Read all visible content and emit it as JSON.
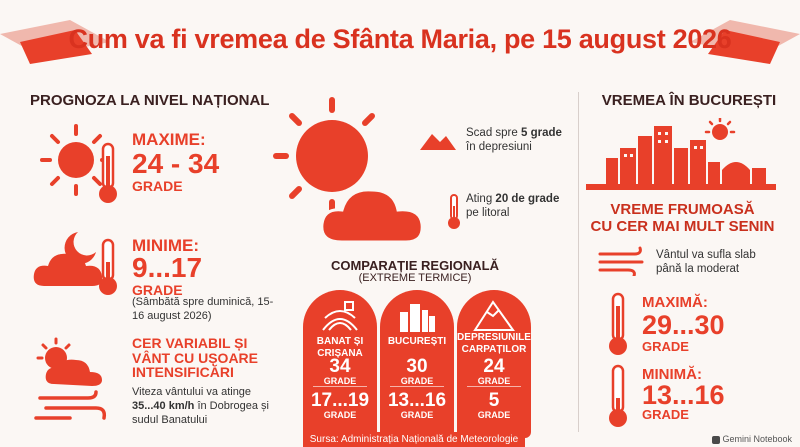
{
  "title": "Cum va fi vremea de Sfânta Maria, pe 15 august 2026",
  "national": {
    "heading": "PROGNOZA LA NIVEL NAȚIONAL",
    "max_label": "MAXIME:",
    "max_value": "24 - 34",
    "max_unit": "GRADE",
    "min_label": "MINIME:",
    "min_value": "9...17",
    "min_unit": "GRADE",
    "min_note": "(Sâmbătă spre duminică, 15-16 august 2026)",
    "variable_label": "CER VARIABIL ȘI VÂNT CU UȘOARE INTENSIFICĂRI",
    "wind_note_1": "Viteza vântului va atinge",
    "wind_speed": "35...40 km/h",
    "wind_note_2": "în Dobrogea și sudul Banatului"
  },
  "center": {
    "depresiuni_1": "Scad spre",
    "depresiuni_bold": "5 grade",
    "depresiuni_2": "în depresiuni",
    "litoral_1": "Ating",
    "litoral_bold": "20 de grade",
    "litoral_2": "pe litoral",
    "regional_heading": "COMPARAȚIE REGIONALĂ",
    "regional_sub": "(EXTREME TERMICE)",
    "regions": [
      {
        "name": "BANAT ȘI CRIȘANA",
        "max": "34",
        "min": "17...19"
      },
      {
        "name": "BUCUREȘTI",
        "max": "30",
        "min": "13...16"
      },
      {
        "name": "DEPRESIUNILE CARPAȚILOR",
        "max": "24",
        "min": "5"
      }
    ],
    "grade": "GRADE",
    "source": "Sursa: Administrația Națională de Meteorologie"
  },
  "bucuresti": {
    "heading": "VREMEA ÎN BUCUREȘTI",
    "summary_1": "VREME FRUMOASĂ",
    "summary_2": "CU CER MAI MULT SENIN",
    "wind": "Vântul va sufla slab până la moderat",
    "max_label": "MAXIMĂ:",
    "max_value": "29...30",
    "max_unit": "GRADE",
    "min_label": "MINIMĂ:",
    "min_value": "13...16",
    "min_unit": "GRADE"
  },
  "watermark": "Gemini Notebook",
  "colors": {
    "accent": "#e8402a",
    "dark": "#3a1f1f",
    "background": "#fbf7f4"
  }
}
